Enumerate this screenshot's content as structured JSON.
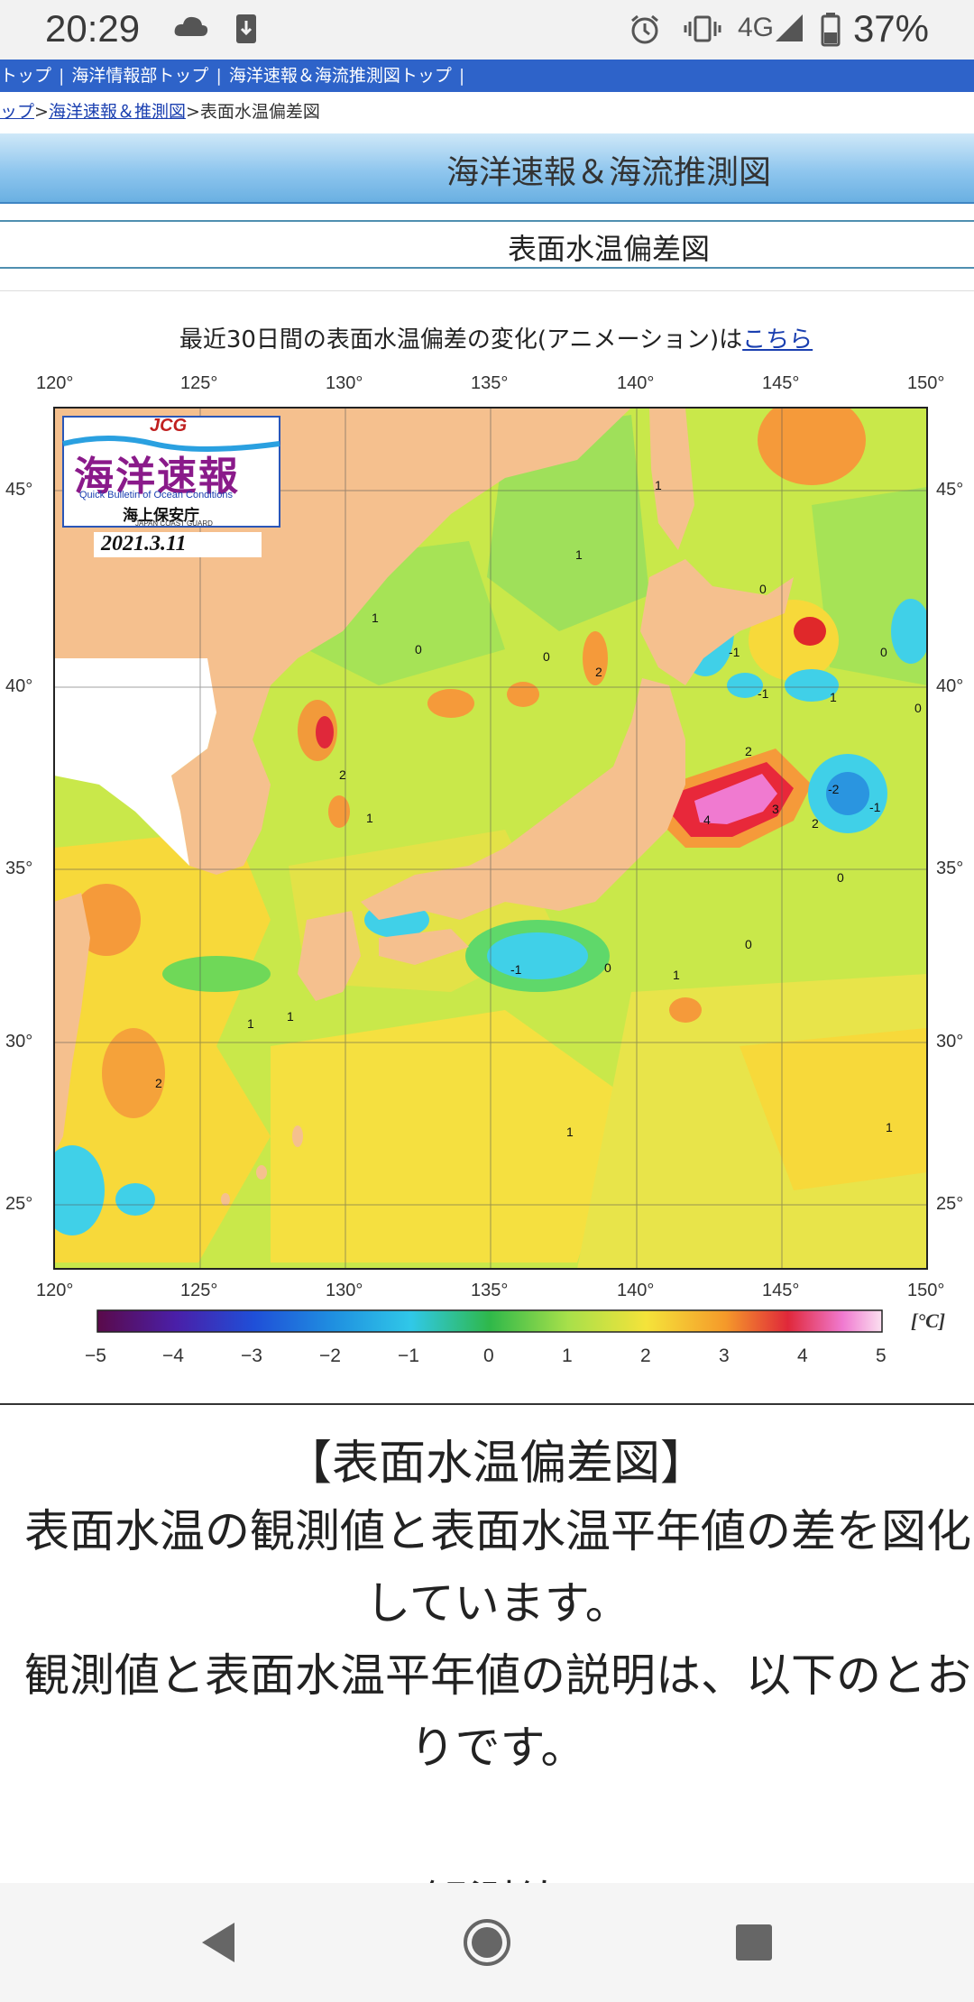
{
  "status_bar": {
    "time": "20:29",
    "network": "4G",
    "battery": "37%"
  },
  "site_nav": {
    "items": [
      "トップ",
      "海洋情報部トップ",
      "海洋速報＆海流推測図トップ"
    ]
  },
  "breadcrumb": {
    "home": "ップ",
    "sep1": ">",
    "link": "海洋速報＆推測図",
    "sep2": ">",
    "current": "表面水温偏差図"
  },
  "header": {
    "title": "海洋速報＆海流推測図",
    "subtitle": "表面水温偏差図"
  },
  "animation_line": {
    "text": "最近30日間の表面水温偏差の変化(アニメーション)は",
    "link": "こちら"
  },
  "map": {
    "logo_top": "JCG",
    "logo_main": "海洋速報",
    "logo_en": "Quick Bulletin of Ocean Conditions",
    "logo_org": "海上保安庁",
    "logo_org_en": "JAPAN COAST GUARD",
    "date": "2021.3.11",
    "lon_ticks": [
      "120°",
      "125°",
      "130°",
      "135°",
      "140°",
      "145°",
      "150°"
    ],
    "lat_ticks": [
      "45°",
      "40°",
      "35°",
      "30°",
      "25°"
    ],
    "colorbar_labels": [
      "−5",
      "−4",
      "−3",
      "−2",
      "−1",
      "0",
      "1",
      "2",
      "3",
      "4",
      "5"
    ],
    "unit": "[°C]",
    "colors": {
      "land": "#f5c08e",
      "ocean_pos1": "#ffe633",
      "ocean_pos0": "#9fe05a",
      "ocean_zero": "#5ec94a",
      "neg1": "#4fd7e8",
      "neg2": "#2aa3e0",
      "pos2": "#f79b3a",
      "pos3": "#e8283a",
      "pos4": "#f07ad0"
    }
  },
  "article": {
    "heading": "【表面水温偏差図】",
    "line1": "表面水温の観測値と表面水温平年値の差を図化",
    "line2": "しています。",
    "line3": "観測値と表面水温平年値の説明は、以下のとお",
    "line4": "りです。",
    "cut_heading": "観測値"
  },
  "nav_bar": {
    "back": "back-icon",
    "home": "home-icon",
    "recents": "recents-icon"
  }
}
